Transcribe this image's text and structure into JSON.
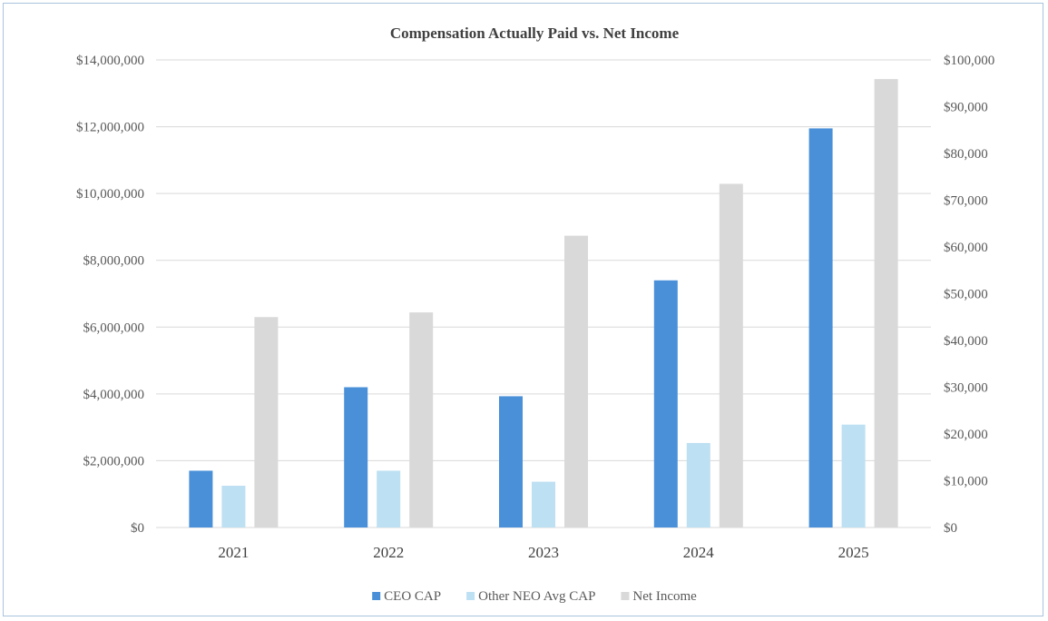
{
  "chart_data": {
    "type": "bar",
    "title": "Compensation Actually Paid vs. Net Income",
    "categories": [
      "2021",
      "2022",
      "2023",
      "2024",
      "2025"
    ],
    "series": [
      {
        "name": "CEO CAP",
        "axis": "left",
        "color": "#4a90d9",
        "values": [
          1700000,
          4200000,
          3930000,
          7400000,
          11950000
        ]
      },
      {
        "name": "Other NEO Avg CAP",
        "axis": "left",
        "color": "#bde0f2",
        "values": [
          1250000,
          1700000,
          1370000,
          2530000,
          3080000
        ]
      },
      {
        "name": "Net Income",
        "axis": "right",
        "color": "#d9d9d9",
        "values": [
          45000,
          46000,
          62400,
          73500,
          95900
        ]
      }
    ],
    "y_left": {
      "min": 0,
      "max": 14000000,
      "ticks": [
        0,
        2000000,
        4000000,
        6000000,
        8000000,
        10000000,
        12000000,
        14000000
      ],
      "tick_labels": [
        "$0",
        "$2,000,000",
        "$4,000,000",
        "$6,000,000",
        "$8,000,000",
        "$10,000,000",
        "$12,000,000",
        "$14,000,000"
      ]
    },
    "y_right": {
      "min": 0,
      "max": 100000,
      "ticks": [
        0,
        10000,
        20000,
        30000,
        40000,
        50000,
        60000,
        70000,
        80000,
        90000,
        100000
      ],
      "tick_labels": [
        "$0",
        "$10,000",
        "$20,000",
        "$30,000",
        "$40,000",
        "$50,000",
        "$60,000",
        "$70,000",
        "$80,000",
        "$90,000",
        "$100,000"
      ]
    },
    "grid": true,
    "legend_position": "bottom",
    "gridline_color": "#d9d9d9"
  }
}
